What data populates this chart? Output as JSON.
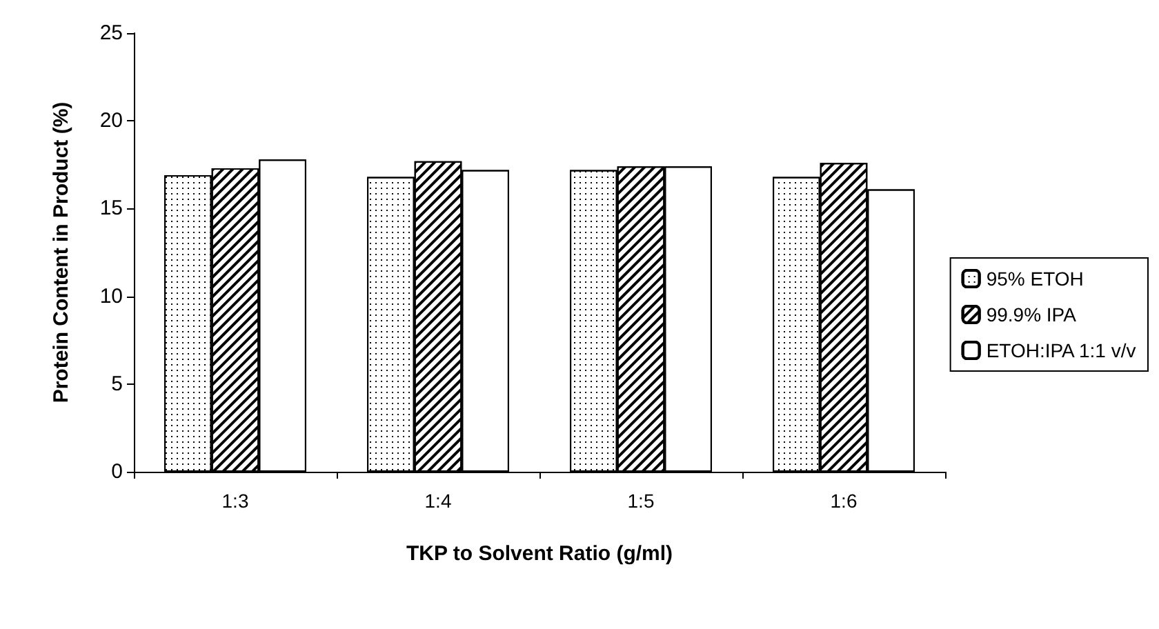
{
  "chart_data": {
    "type": "bar",
    "xlabel": "TKP to Solvent Ratio (g/ml)",
    "ylabel": "Protein Content in Product (%)",
    "categories": [
      "1:3",
      "1:4",
      "1:5",
      "1:6"
    ],
    "series": [
      {
        "name": "95% ETOH",
        "color": "#000000",
        "values": [
          16.9,
          16.8,
          17.2,
          16.8
        ]
      },
      {
        "name": "99.9% IPA",
        "color": "#000000",
        "values": [
          17.3,
          17.7,
          17.4,
          17.6
        ]
      },
      {
        "name": "ETOH:IPA 1:1 v/v",
        "color": "#000000",
        "values": [
          17.8,
          17.2,
          17.4,
          16.1
        ]
      }
    ],
    "ylim": [
      0,
      25
    ],
    "yticks": [
      0,
      5,
      10,
      15,
      20,
      25
    ],
    "grid": false,
    "legend": "right"
  }
}
